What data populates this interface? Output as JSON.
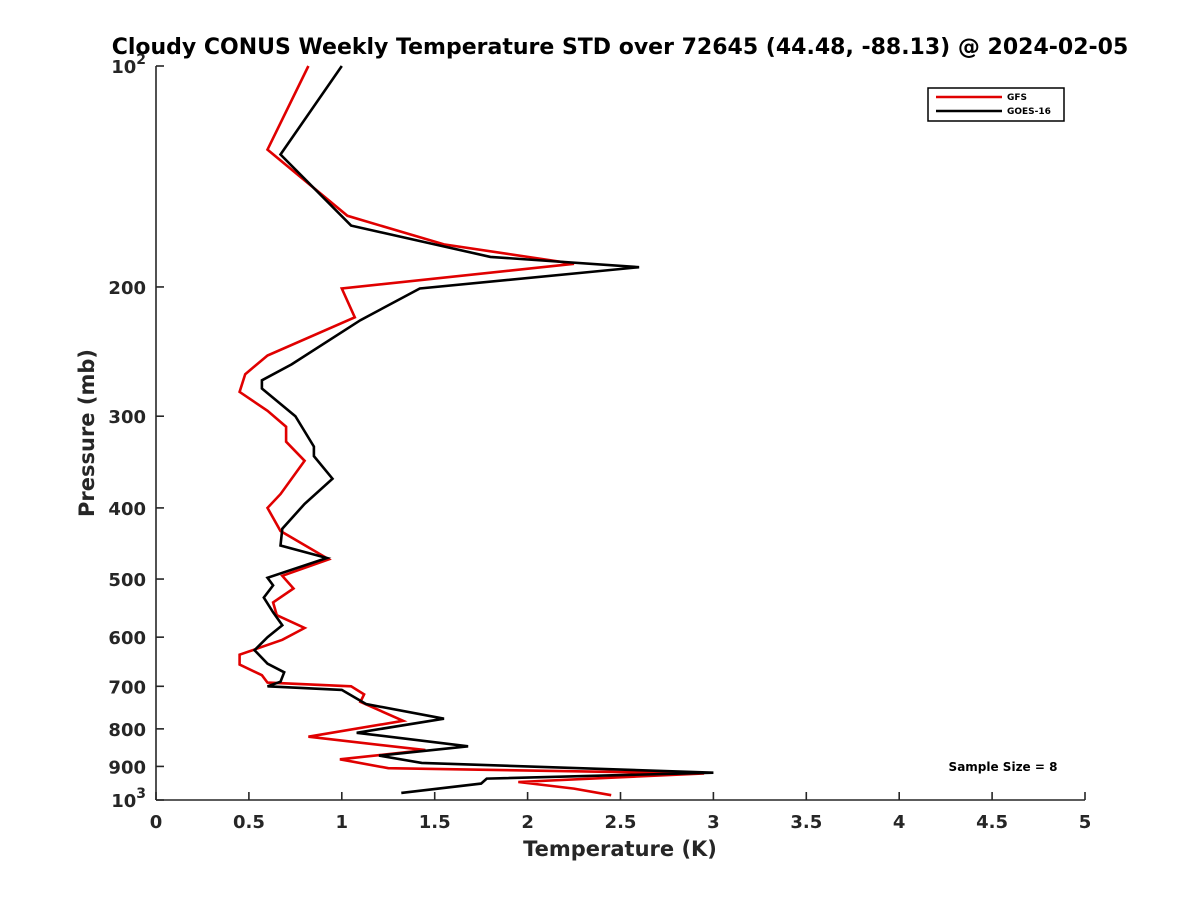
{
  "chart_data": {
    "type": "line",
    "title": "Cloudy CONUS Weekly Temperature STD over 72645 (44.48, -88.13) @ 2024-02-05",
    "xlabel": "Temperature (K)",
    "ylabel": "Pressure (mb)",
    "xlim": [
      0,
      5
    ],
    "ylim": [
      100,
      1000
    ],
    "y_scale": "log",
    "y_reversed": true,
    "x_ticks": [
      0,
      0.5,
      1,
      1.5,
      2,
      2.5,
      3,
      3.5,
      4,
      4.5,
      5
    ],
    "x_tick_labels": [
      "0",
      "0.5",
      "1",
      "1.5",
      "2",
      "2.5",
      "3",
      "3.5",
      "4",
      "4.5",
      "5"
    ],
    "y_ticks": [
      100,
      200,
      300,
      400,
      500,
      600,
      700,
      800,
      900,
      1000
    ],
    "y_tick_labels": [
      {
        "base": "10",
        "exp": "2"
      },
      {
        "base": "200"
      },
      {
        "base": "300"
      },
      {
        "base": "400"
      },
      {
        "base": "500"
      },
      {
        "base": "600"
      },
      {
        "base": "700"
      },
      {
        "base": "800"
      },
      {
        "base": "900"
      },
      {
        "base": "10",
        "exp": "3"
      }
    ],
    "grid": false,
    "legend_position": "top-right",
    "annotation": "Sample Size = 8",
    "series": [
      {
        "name": "GFS",
        "color": "#e00000",
        "x": [
          0.82,
          0.6,
          1.03,
          1.55,
          2.25,
          1.0,
          1.07,
          0.6,
          0.48,
          0.45,
          0.6,
          0.7,
          0.7,
          0.8,
          0.67,
          0.6,
          0.67,
          0.93,
          0.68,
          0.74,
          0.63,
          0.65,
          0.8,
          0.68,
          0.45,
          0.45,
          0.57,
          0.6,
          1.05,
          1.12,
          1.1,
          1.33,
          0.82,
          1.45,
          0.99,
          1.25,
          2.95,
          1.95,
          2.25,
          2.45
        ],
        "y": [
          100,
          130,
          160,
          175,
          186,
          201,
          220,
          248,
          263,
          278,
          295,
          310,
          325,
          345,
          383,
          400,
          430,
          470,
          495,
          515,
          538,
          560,
          583,
          605,
          634,
          654,
          676,
          692,
          700,
          718,
          735,
          780,
          820,
          855,
          880,
          905,
          920,
          945,
          965,
          985
        ]
      },
      {
        "name": "GOES-16",
        "color": "#000000",
        "x": [
          1.0,
          0.67,
          1.05,
          1.8,
          2.6,
          1.42,
          1.1,
          0.73,
          0.57,
          0.57,
          0.75,
          0.85,
          0.85,
          0.95,
          0.8,
          0.68,
          0.67,
          0.92,
          0.6,
          0.63,
          0.58,
          0.63,
          0.68,
          0.6,
          0.53,
          0.6,
          0.69,
          0.67,
          0.6,
          1.0,
          1.13,
          1.55,
          1.08,
          1.68,
          1.2,
          1.43,
          3.0,
          1.78,
          1.75,
          1.32
        ],
        "y": [
          100,
          132,
          165,
          182,
          188,
          201,
          222,
          255,
          268,
          275,
          300,
          330,
          340,
          365,
          395,
          427,
          450,
          468,
          498,
          510,
          530,
          555,
          578,
          600,
          625,
          652,
          670,
          690,
          700,
          708,
          740,
          775,
          810,
          845,
          870,
          890,
          918,
          935,
          950,
          978
        ]
      }
    ]
  }
}
